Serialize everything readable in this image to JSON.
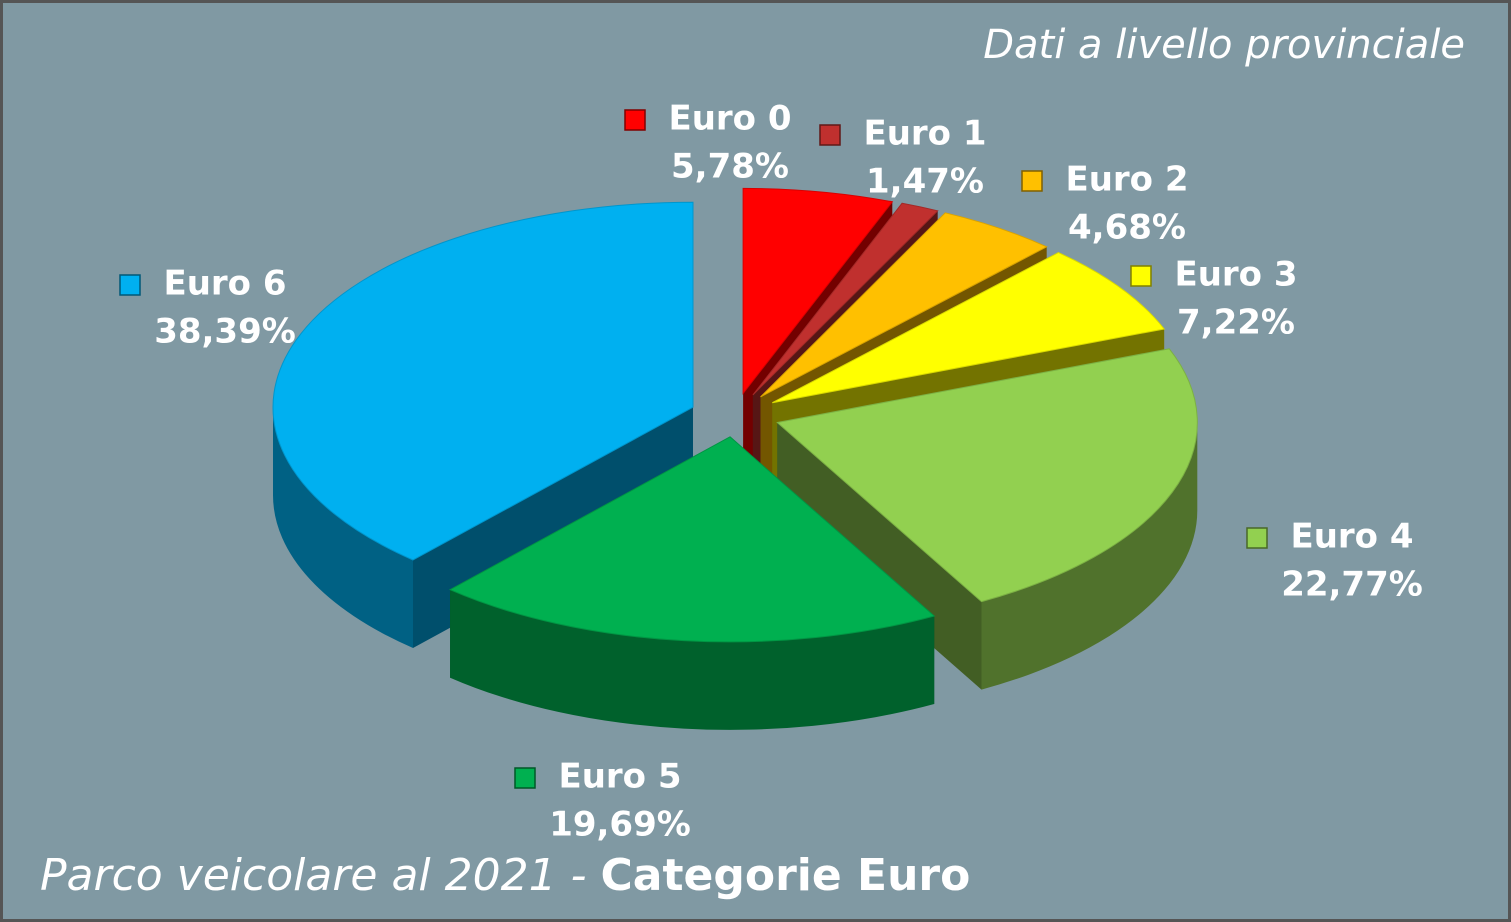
{
  "chart_data": {
    "type": "pie3d",
    "title": [
      "Parco veicolare al 2021 -",
      "Categorie Euro"
    ],
    "annotation": "Dati a livello provinciale",
    "categories": [
      "Euro 0",
      "Euro 1",
      "Euro 2",
      "Euro 3",
      "Euro 4",
      "Euro 5",
      "Euro 6"
    ],
    "values": [
      5.78,
      1.47,
      4.68,
      7.22,
      22.77,
      19.69,
      38.39
    ],
    "value_labels": [
      "5,78%",
      "1,47%",
      "4,68%",
      "7,22%",
      "22,77%",
      "19,69%",
      "38,39%"
    ],
    "colors": [
      "#ff0000",
      "#c0302e",
      "#ffc000",
      "#ffff00",
      "#92d050",
      "#00b050",
      "#00b0f0"
    ]
  }
}
